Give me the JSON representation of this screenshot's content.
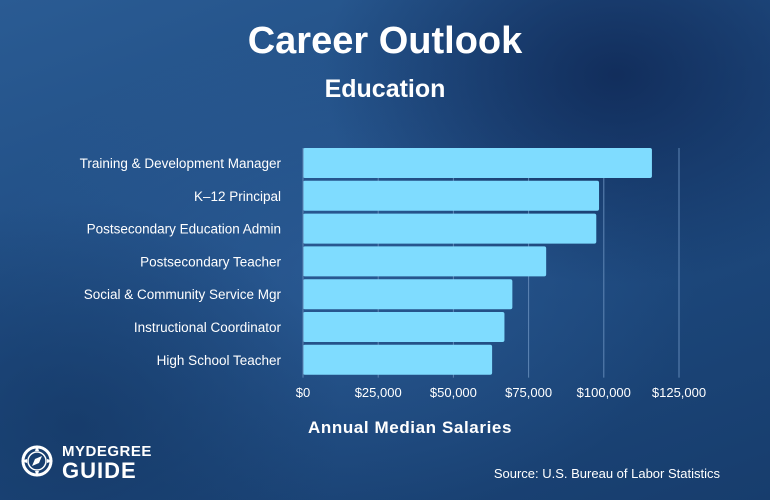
{
  "header": {
    "title": "Career Outlook",
    "subtitle": "Education"
  },
  "chart_data": {
    "type": "bar",
    "orientation": "horizontal",
    "title": "Career Outlook",
    "subtitle": "Education",
    "xlabel": "Annual Median Salaries",
    "ylabel": "",
    "categories": [
      "Training & Development Manager",
      "K–12 Principal",
      "Postsecondary Education Admin",
      "Postsecondary Teacher",
      "Social & Community Service Mgr",
      "Instructional Coordinator",
      "High School Teacher"
    ],
    "values": [
      116000,
      98420,
      97500,
      80840,
      69600,
      66970,
      62870
    ],
    "xlim": [
      0,
      125000
    ],
    "xticks": [
      0,
      25000,
      50000,
      75000,
      100000,
      125000
    ],
    "xtick_labels": [
      "$0",
      "$25,000",
      "$50,000",
      "$75,000",
      "$100,000",
      "$125,000"
    ],
    "grid": true,
    "legend": "none",
    "bar_color": "#7fdcff",
    "text_color": "#ffffff",
    "grid_color": "#5f86b5"
  },
  "footer": {
    "logo_top": "MYDEGREE",
    "logo_bottom": "GUIDE",
    "logo_icon": "compass-icon",
    "source": "Source: U.S. Bureau of Labor Statistics"
  }
}
